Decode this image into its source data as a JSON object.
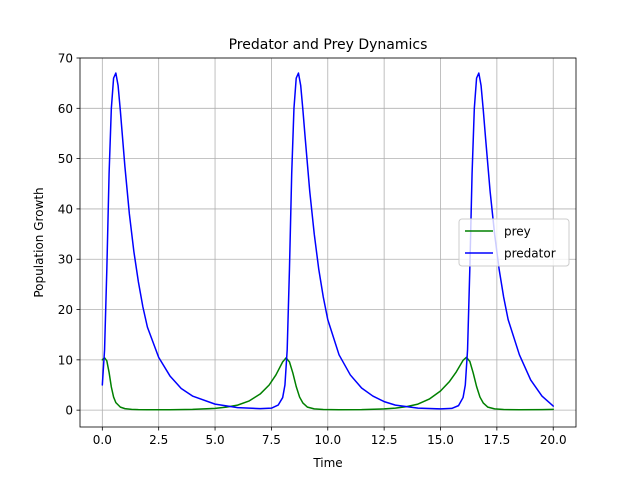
{
  "chart_data": {
    "type": "line",
    "title": "Predator and Prey Dynamics",
    "xlabel": "Time",
    "ylabel": "Population Growth",
    "xlim": [
      -0.99,
      21.01
    ],
    "ylim": [
      -3.35,
      70
    ],
    "xticks": [
      0.0,
      2.5,
      5.0,
      7.5,
      10.0,
      12.5,
      15.0,
      17.5,
      20.0
    ],
    "xtick_labels": [
      "0.0",
      "2.5",
      "5.0",
      "7.5",
      "10.0",
      "12.5",
      "15.0",
      "17.5",
      "20.0"
    ],
    "yticks": [
      0,
      10,
      20,
      30,
      40,
      50,
      60,
      70
    ],
    "ytick_labels": [
      "0",
      "10",
      "20",
      "30",
      "40",
      "50",
      "60",
      "70"
    ],
    "grid": true,
    "legend": "center-right",
    "series": [
      {
        "name": "prey",
        "color": "#008000",
        "x": [
          0,
          0.1,
          0.2,
          0.3,
          0.4,
          0.5,
          0.6,
          0.8,
          1.0,
          1.3,
          1.6,
          2.0,
          3.0,
          4.0,
          5.0,
          5.5,
          6.0,
          6.5,
          7.0,
          7.4,
          7.7,
          8.0,
          8.15,
          8.3,
          8.45,
          8.6,
          8.75,
          8.9,
          9.1,
          9.4,
          9.8,
          10.5,
          11.5,
          12.5,
          13.0,
          13.5,
          14.0,
          14.5,
          15.0,
          15.4,
          15.7,
          16.0,
          16.15,
          16.3,
          16.45,
          16.6,
          16.75,
          16.9,
          17.1,
          17.4,
          17.8,
          18.5,
          19.5,
          20.0
        ],
        "y": [
          10.0,
          10.4,
          9.8,
          7.5,
          4.6,
          2.6,
          1.5,
          0.6,
          0.3,
          0.15,
          0.1,
          0.08,
          0.09,
          0.15,
          0.35,
          0.6,
          1.0,
          1.8,
          3.2,
          5.0,
          7.0,
          9.6,
          10.4,
          9.6,
          7.4,
          4.7,
          2.6,
          1.4,
          0.6,
          0.25,
          0.12,
          0.08,
          0.1,
          0.25,
          0.4,
          0.7,
          1.2,
          2.2,
          3.8,
          5.7,
          7.6,
          9.9,
          10.5,
          9.7,
          7.4,
          4.7,
          2.6,
          1.4,
          0.6,
          0.25,
          0.12,
          0.08,
          0.1,
          0.15
        ]
      },
      {
        "name": "predator",
        "color": "#0000ff",
        "x": [
          0,
          0.1,
          0.2,
          0.3,
          0.4,
          0.5,
          0.6,
          0.7,
          0.8,
          0.9,
          1.0,
          1.2,
          1.4,
          1.6,
          1.8,
          2.0,
          2.5,
          3.0,
          3.5,
          4.0,
          5.0,
          6.0,
          7.0,
          7.5,
          7.8,
          8.0,
          8.1,
          8.2,
          8.3,
          8.4,
          8.5,
          8.6,
          8.7,
          8.8,
          8.9,
          9.0,
          9.2,
          9.4,
          9.6,
          9.8,
          10.0,
          10.5,
          11.0,
          11.5,
          12.0,
          12.5,
          13.0,
          14.0,
          15.0,
          15.5,
          15.8,
          16.0,
          16.1,
          16.2,
          16.3,
          16.4,
          16.5,
          16.6,
          16.7,
          16.8,
          16.9,
          17.0,
          17.2,
          17.4,
          17.6,
          17.8,
          18.0,
          18.5,
          19.0,
          19.5,
          20.0
        ],
        "y": [
          5.0,
          12.0,
          28.0,
          47.0,
          60.0,
          66.0,
          67.0,
          64.5,
          59.5,
          54.0,
          48.5,
          39.0,
          31.5,
          25.5,
          20.5,
          16.5,
          10.5,
          6.8,
          4.3,
          2.8,
          1.2,
          0.5,
          0.3,
          0.4,
          1.0,
          2.5,
          5.0,
          12.0,
          28.0,
          47.0,
          60.0,
          66.0,
          67.0,
          64.5,
          59.5,
          54.0,
          43.5,
          35.0,
          28.0,
          22.5,
          18.0,
          11.0,
          7.0,
          4.4,
          2.8,
          1.7,
          1.0,
          0.4,
          0.25,
          0.35,
          0.9,
          2.5,
          5.0,
          12.0,
          28.0,
          47.0,
          60.0,
          66.0,
          67.0,
          64.5,
          59.5,
          54.0,
          43.5,
          35.0,
          28.0,
          22.5,
          18.0,
          11.0,
          6.0,
          2.8,
          0.8
        ]
      }
    ]
  }
}
